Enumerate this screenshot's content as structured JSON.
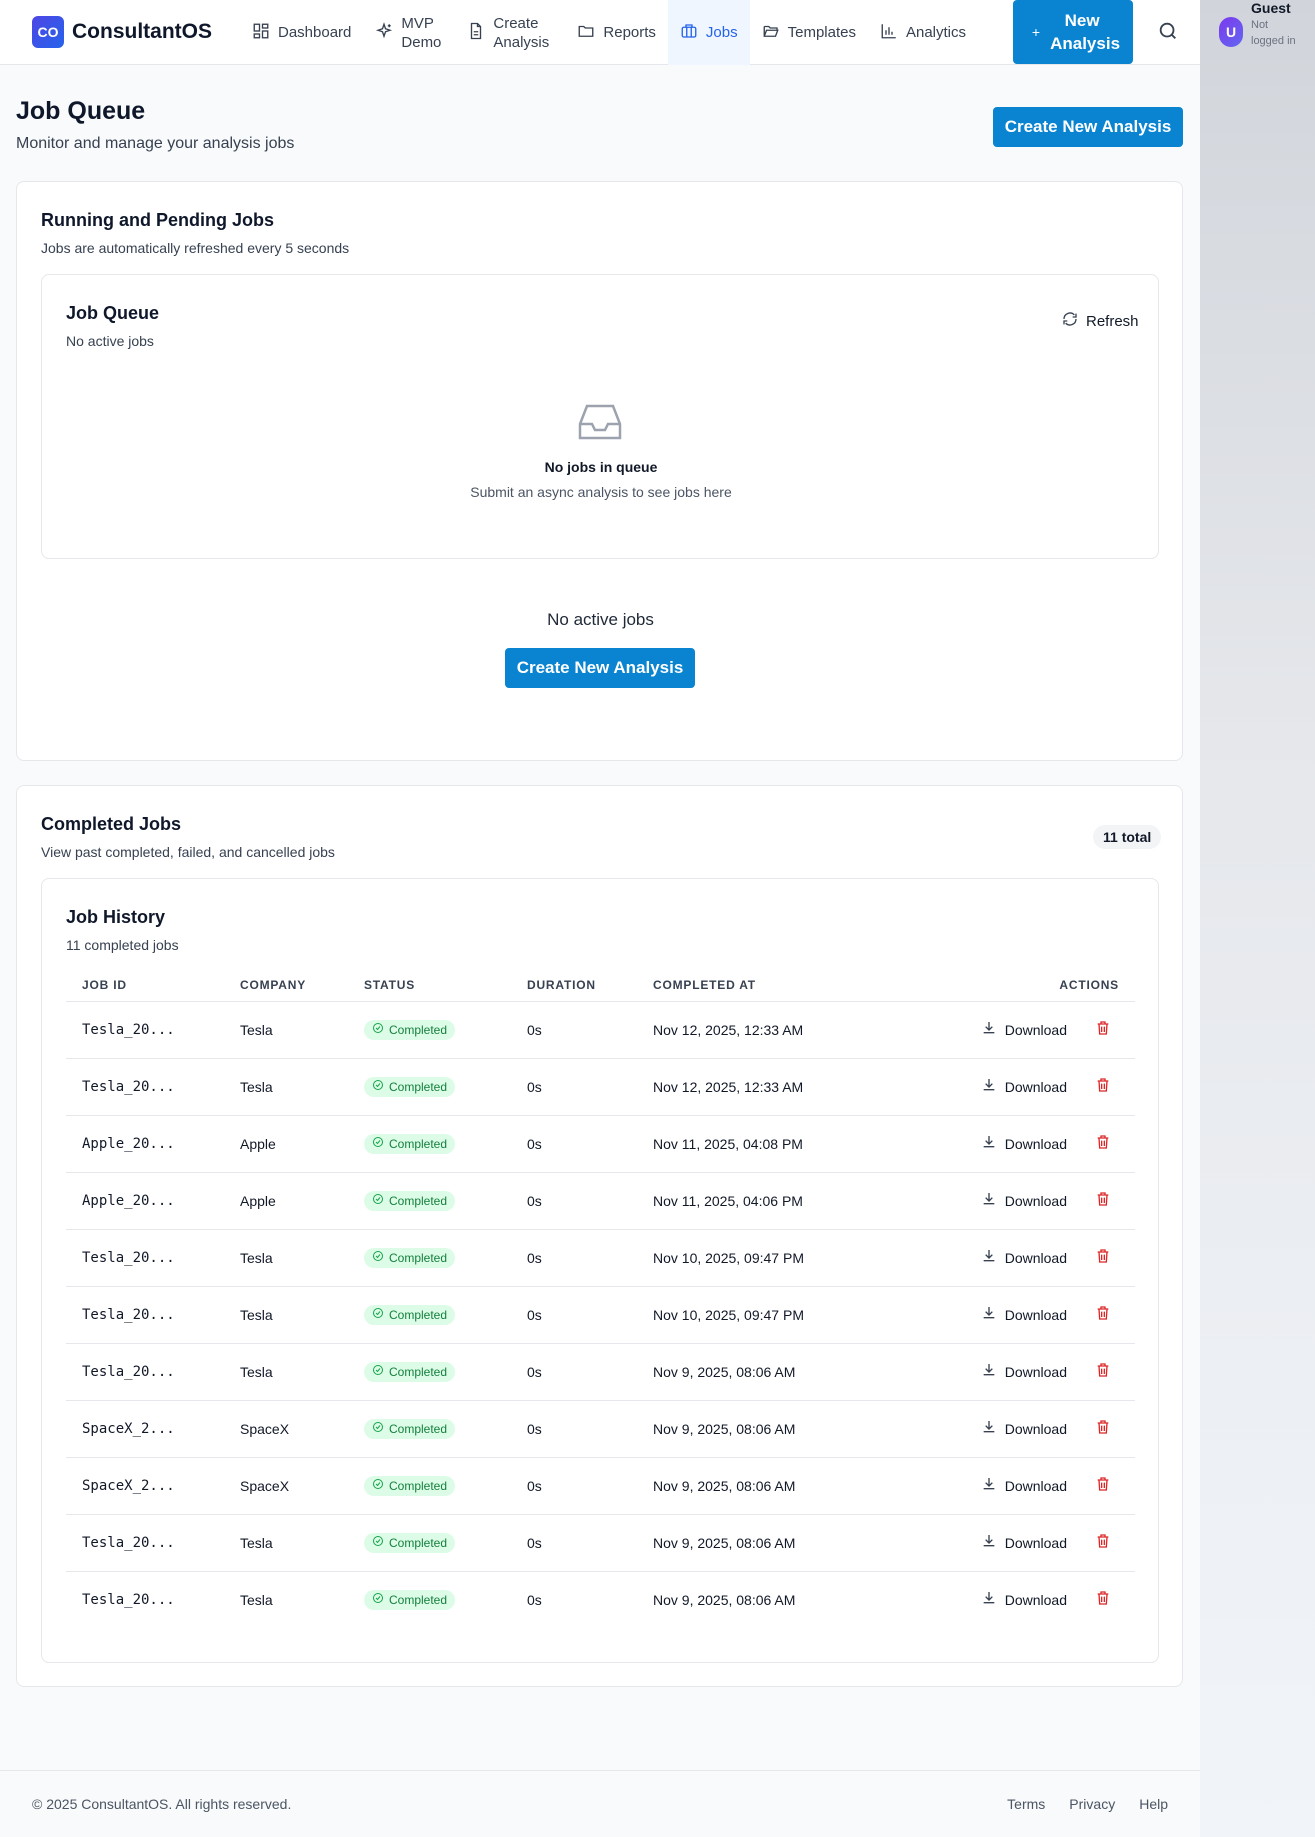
{
  "brand": {
    "logo_mark": "CO",
    "name": "ConsultantOS"
  },
  "nav": {
    "items": [
      {
        "label": "Dashboard",
        "icon": "dashboard-icon"
      },
      {
        "label": "MVP Demo",
        "icon": "sparkles-icon"
      },
      {
        "label": "Create Analysis",
        "icon": "document-icon"
      },
      {
        "label": "Reports",
        "icon": "folder-icon"
      },
      {
        "label": "Jobs",
        "icon": "briefcase-icon",
        "active": true
      },
      {
        "label": "Templates",
        "icon": "folder-open-icon"
      },
      {
        "label": "Analytics",
        "icon": "bar-chart-icon"
      }
    ],
    "new_button": {
      "plus": "+",
      "label": "New Analysis"
    }
  },
  "user": {
    "avatar": "U",
    "name": "Guest",
    "status": "Not logged in"
  },
  "page": {
    "title": "Job Queue",
    "subtitle": "Monitor and manage your analysis jobs",
    "create_button": "Create New Analysis"
  },
  "running": {
    "title": "Running and Pending Jobs",
    "subtitle": "Jobs are automatically refreshed every 5 seconds",
    "queue": {
      "title": "Job Queue",
      "subtitle": "No active jobs",
      "refresh_label": "Refresh",
      "empty_title": "No jobs in queue",
      "empty_sub": "Submit an async analysis to see jobs here"
    },
    "no_active": "No active jobs",
    "create_button": "Create New Analysis"
  },
  "completed": {
    "title": "Completed Jobs",
    "subtitle": "View past completed, failed, and cancelled jobs",
    "total_badge": "11 total",
    "history": {
      "title": "Job History",
      "subtitle": "11 completed jobs",
      "columns": [
        "JOB ID",
        "COMPANY",
        "STATUS",
        "DURATION",
        "COMPLETED AT",
        "ACTIONS"
      ],
      "download_label": "Download",
      "rows": [
        {
          "job_id": "Tesla_20...",
          "company": "Tesla",
          "status": "Completed",
          "duration": "0s",
          "completed_at": "Nov 12, 2025, 12:33 AM"
        },
        {
          "job_id": "Tesla_20...",
          "company": "Tesla",
          "status": "Completed",
          "duration": "0s",
          "completed_at": "Nov 12, 2025, 12:33 AM"
        },
        {
          "job_id": "Apple_20...",
          "company": "Apple",
          "status": "Completed",
          "duration": "0s",
          "completed_at": "Nov 11, 2025, 04:08 PM"
        },
        {
          "job_id": "Apple_20...",
          "company": "Apple",
          "status": "Completed",
          "duration": "0s",
          "completed_at": "Nov 11, 2025, 04:06 PM"
        },
        {
          "job_id": "Tesla_20...",
          "company": "Tesla",
          "status": "Completed",
          "duration": "0s",
          "completed_at": "Nov 10, 2025, 09:47 PM"
        },
        {
          "job_id": "Tesla_20...",
          "company": "Tesla",
          "status": "Completed",
          "duration": "0s",
          "completed_at": "Nov 10, 2025, 09:47 PM"
        },
        {
          "job_id": "Tesla_20...",
          "company": "Tesla",
          "status": "Completed",
          "duration": "0s",
          "completed_at": "Nov 9, 2025, 08:06 AM"
        },
        {
          "job_id": "SpaceX_2...",
          "company": "SpaceX",
          "status": "Completed",
          "duration": "0s",
          "completed_at": "Nov 9, 2025, 08:06 AM"
        },
        {
          "job_id": "SpaceX_2...",
          "company": "SpaceX",
          "status": "Completed",
          "duration": "0s",
          "completed_at": "Nov 9, 2025, 08:06 AM"
        },
        {
          "job_id": "Tesla_20...",
          "company": "Tesla",
          "status": "Completed",
          "duration": "0s",
          "completed_at": "Nov 9, 2025, 08:06 AM"
        },
        {
          "job_id": "Tesla_20...",
          "company": "Tesla",
          "status": "Completed",
          "duration": "0s",
          "completed_at": "Nov 9, 2025, 08:06 AM"
        }
      ]
    }
  },
  "footer": {
    "copyright": "© 2025 ConsultantOS. All rights reserved.",
    "links": [
      "Terms",
      "Privacy",
      "Help"
    ]
  },
  "colors": {
    "primary": "#0a84d0",
    "active_nav": "#2563eb",
    "status_green": "#15803d",
    "delete_red": "#dc2626"
  }
}
